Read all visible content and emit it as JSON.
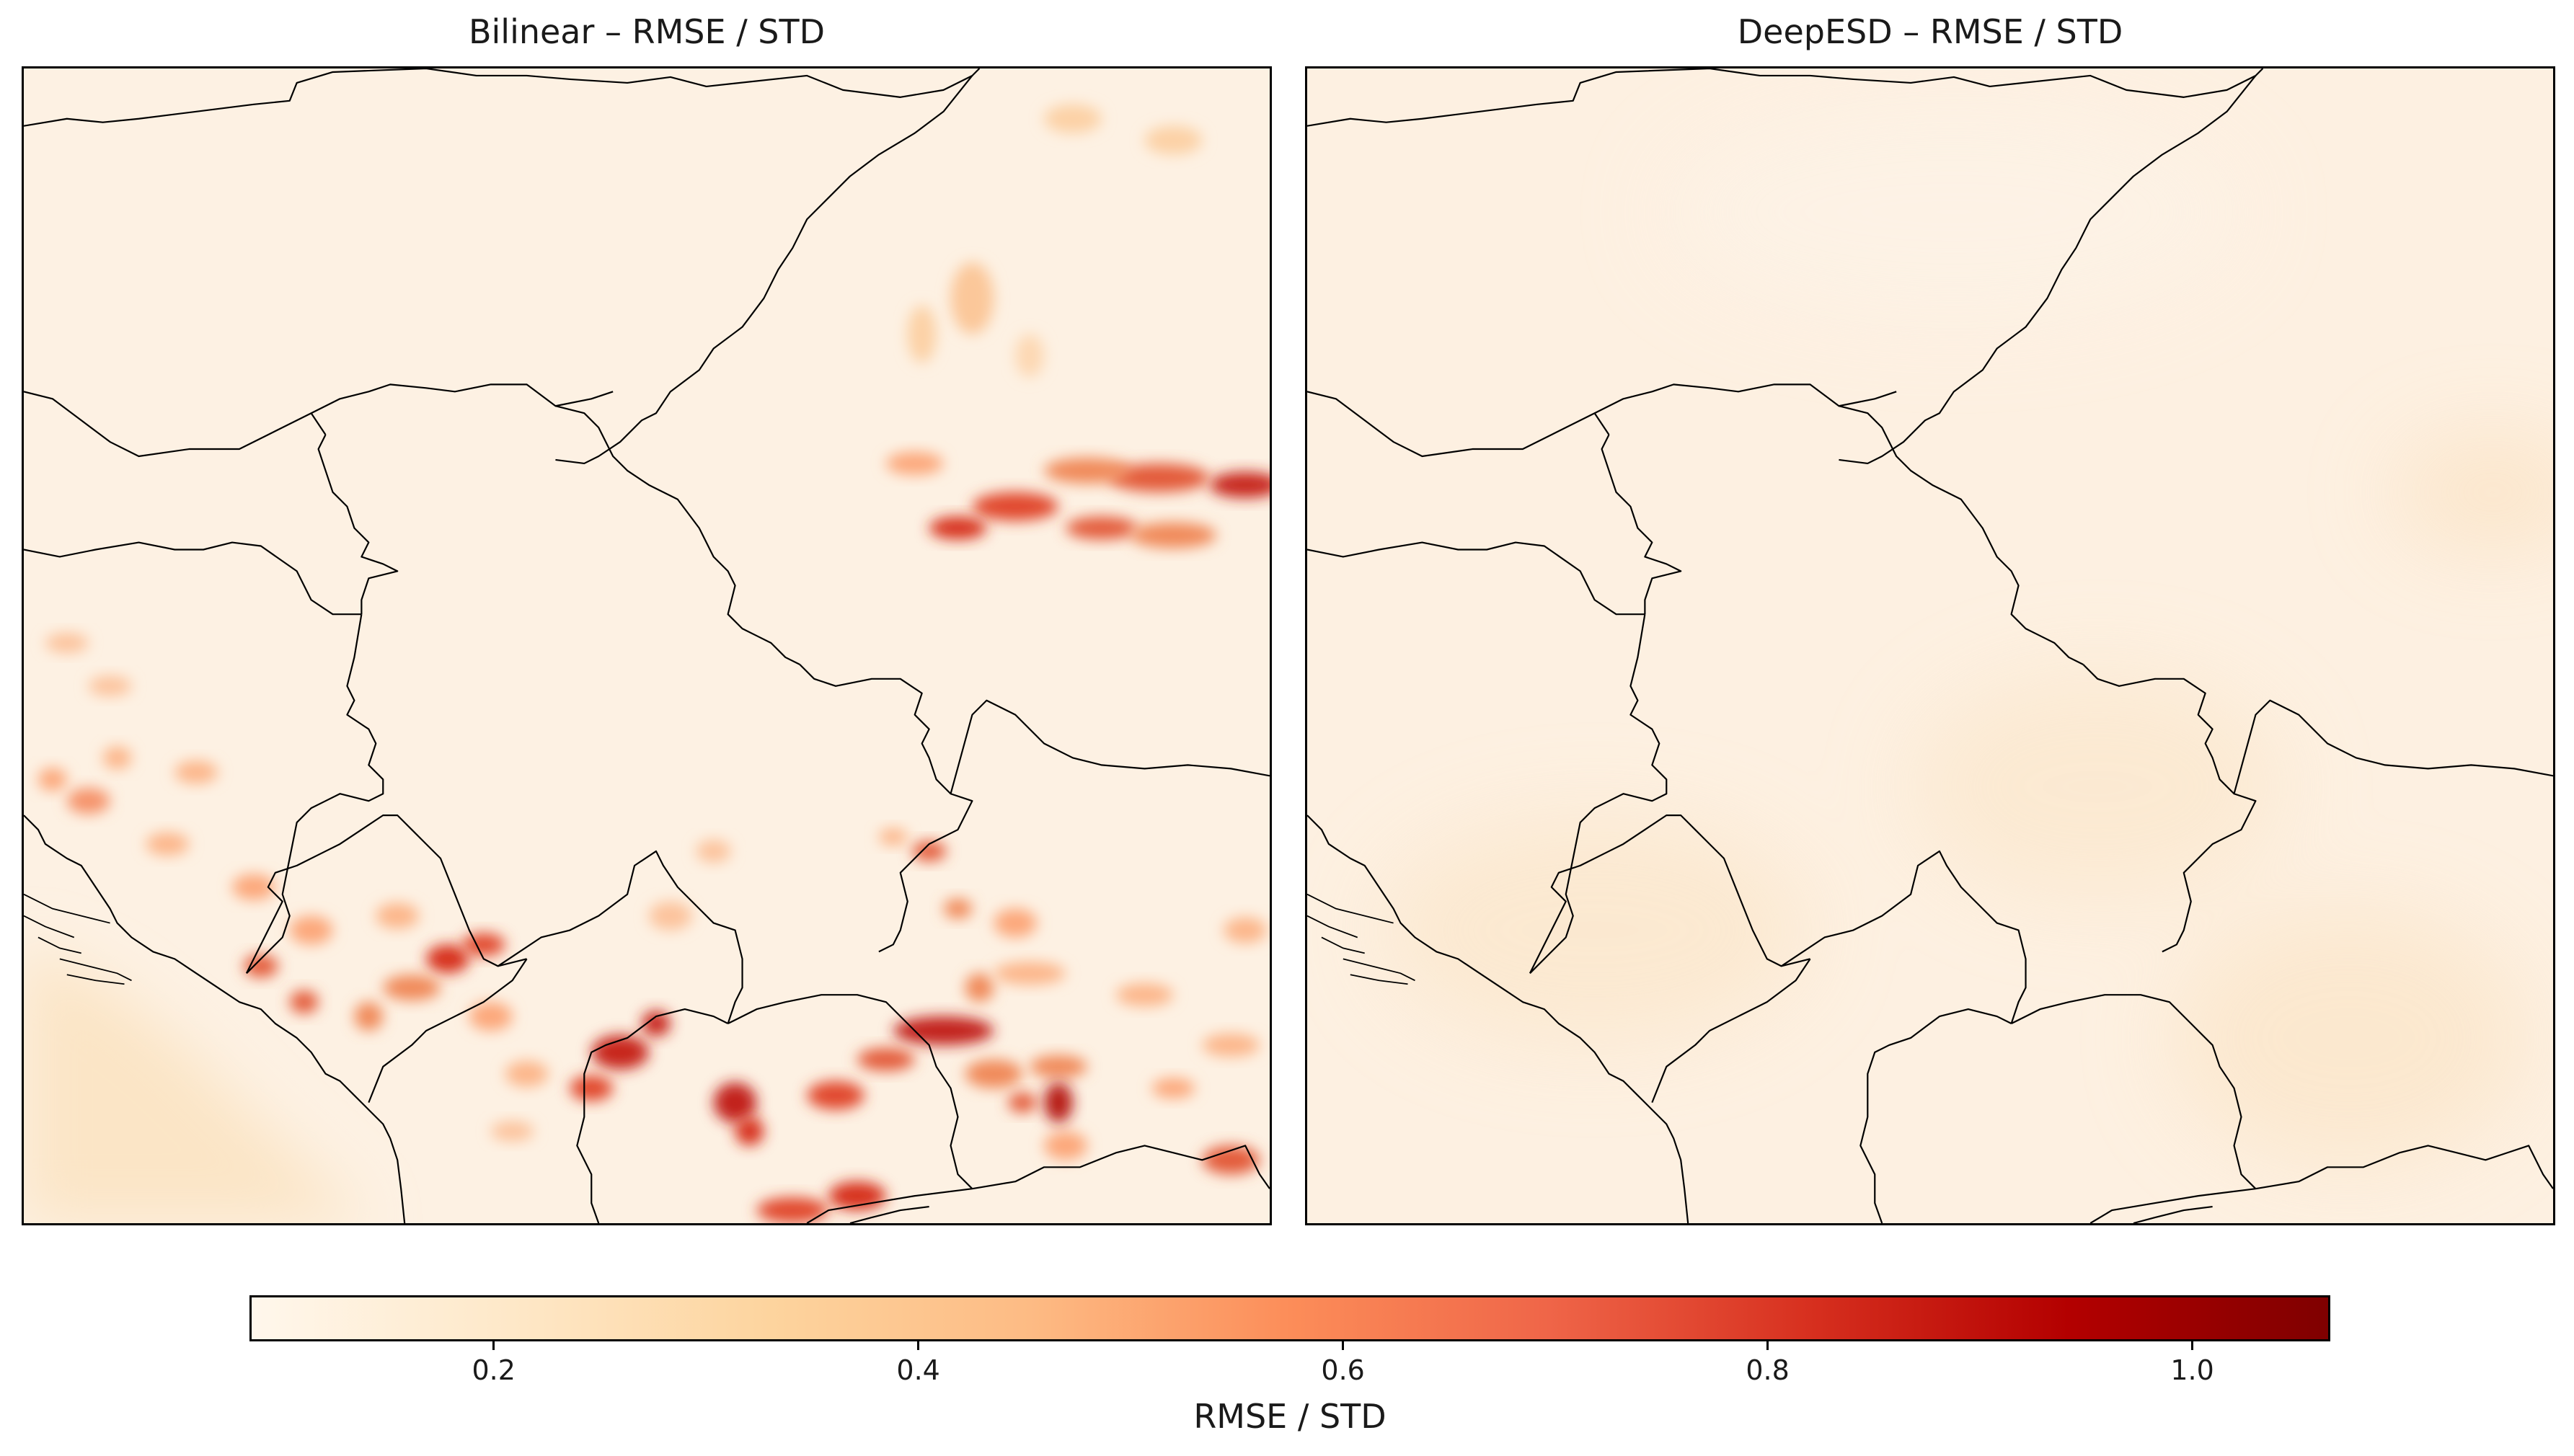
{
  "panels": [
    {
      "title": "Bilinear – RMSE / STD",
      "field": "high-variance with red hotspots over mountains"
    },
    {
      "title": "DeepESD – RMSE / STD",
      "field": "uniformly low"
    }
  ],
  "colorbar": {
    "label": "RMSE / STD",
    "colormap": "OrRd",
    "range": [
      0.085,
      1.065
    ],
    "ticks": [
      {
        "value": 0.2,
        "label": "0.2"
      },
      {
        "value": 0.4,
        "label": "0.4"
      },
      {
        "value": 0.6,
        "label": "0.6"
      },
      {
        "value": 0.8,
        "label": "0.8"
      },
      {
        "value": 1.0,
        "label": "1.0"
      }
    ],
    "colors": [
      "#fff7ec",
      "#fee8c8",
      "#fdd49e",
      "#fdbb84",
      "#fc8d59",
      "#ef6548",
      "#d7301f",
      "#b30000",
      "#7f0000"
    ]
  }
}
